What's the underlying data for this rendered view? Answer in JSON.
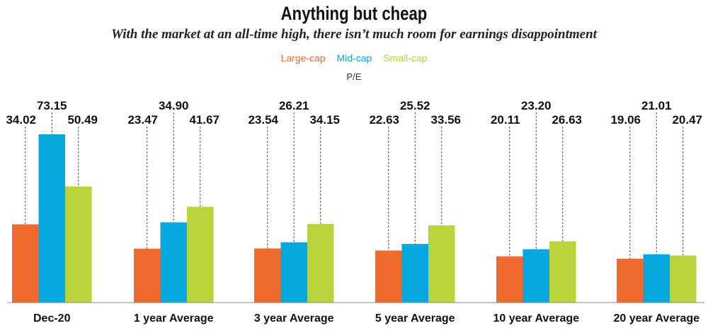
{
  "chart_data": {
    "type": "bar",
    "title": "Anything but cheap",
    "subtitle": "With the market at an all-time high, there isn’t much room for earnings disappointment",
    "ylabel": "P/E",
    "legend_position": "top-center",
    "grid": false,
    "categories": [
      "Dec-20",
      "1 year Average",
      "3 year Average",
      "5 year Average",
      "10 year Average",
      "20 year Average"
    ],
    "series": [
      {
        "name": "Large-cap",
        "color": "#ef6a2c",
        "values": [
          34.02,
          23.47,
          23.54,
          22.63,
          20.11,
          19.06
        ]
      },
      {
        "name": "Mid-cap",
        "color": "#06a8df",
        "values": [
          73.15,
          34.9,
          26.21,
          25.52,
          23.2,
          21.01
        ]
      },
      {
        "name": "Small-cap",
        "color": "#b9d33a",
        "values": [
          50.49,
          41.67,
          34.15,
          33.56,
          26.63,
          20.47
        ]
      }
    ],
    "data_labels": [
      [
        "34.02",
        "73.15",
        "50.49"
      ],
      [
        "23.47",
        "34.90",
        "41.67"
      ],
      [
        "23.54",
        "26.21",
        "34.15"
      ],
      [
        "22.63",
        "25.52",
        "33.56"
      ],
      [
        "20.11",
        "23.20",
        "26.63"
      ],
      [
        "19.06",
        "21.01",
        "20.47"
      ]
    ],
    "ylim": [
      0,
      73.15
    ]
  }
}
